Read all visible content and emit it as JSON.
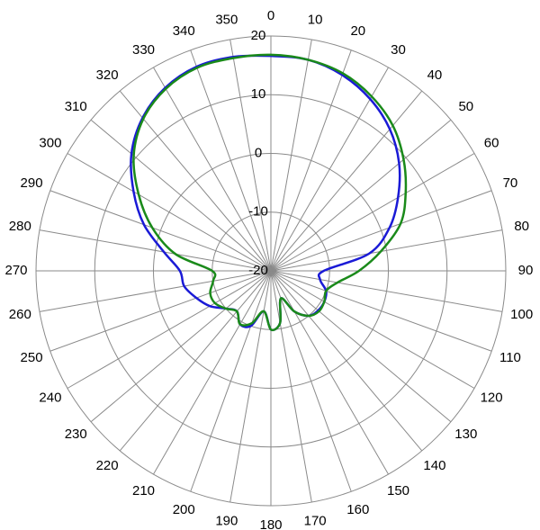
{
  "chart_data": {
    "type": "polar",
    "x": [
      0,
      10,
      20,
      30,
      40,
      50,
      60,
      70,
      80,
      90,
      100,
      110,
      120,
      130,
      140,
      150,
      160,
      170,
      180,
      190,
      200,
      210,
      220,
      230,
      240,
      250,
      260,
      270,
      280,
      290,
      300,
      310,
      320,
      330,
      340,
      350
    ],
    "thetaticks": [
      0,
      10,
      20,
      30,
      40,
      50,
      60,
      70,
      80,
      90,
      100,
      110,
      120,
      130,
      140,
      150,
      160,
      170,
      180,
      190,
      200,
      210,
      220,
      230,
      240,
      250,
      260,
      270,
      280,
      290,
      300,
      310,
      320,
      330,
      340,
      350
    ],
    "ylim": [
      -20,
      20
    ],
    "yticks": [
      -20,
      -10,
      0,
      10,
      20
    ],
    "grid": true,
    "series": [
      {
        "color": "#1a1ad6",
        "values": [
          16.6,
          16.5,
          15.5,
          13.8,
          11.5,
          8.5,
          5,
          1.5,
          -3,
          -11,
          -11.5,
          -10,
          -9.5,
          -9.5,
          -10,
          -12,
          -15,
          -11,
          -10,
          -13,
          -10,
          -9.5,
          -11,
          -10,
          -8,
          -6.5,
          -5,
          -4.5,
          -1.5,
          3,
          7,
          11,
          14,
          16,
          17,
          17
        ]
      },
      {
        "color": "#1a8a1a",
        "values": [
          16.8,
          16.5,
          15.8,
          14.3,
          12.3,
          9.5,
          6.5,
          3.5,
          -1,
          -5,
          -8.5,
          -10,
          -9.5,
          -9.3,
          -10,
          -12,
          -15,
          -11,
          -10,
          -13,
          -10.5,
          -9.5,
          -11,
          -10,
          -9,
          -9,
          -10,
          -10,
          -3.5,
          1.5,
          6,
          10.5,
          13.8,
          15.8,
          16.8,
          16.8
        ]
      }
    ]
  }
}
